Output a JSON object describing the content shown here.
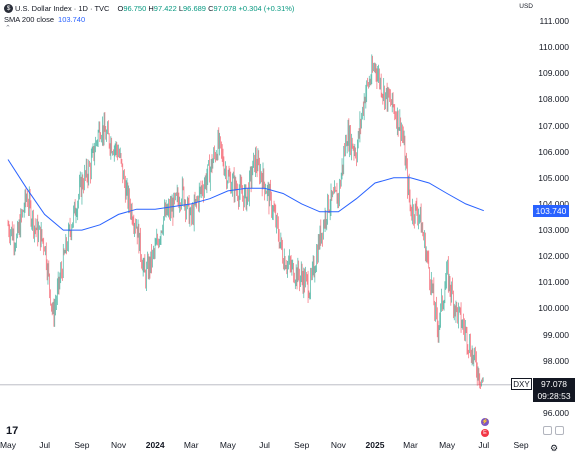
{
  "header": {
    "symbol_badge": "$",
    "title": "U.S. Dollar Index · 1D · TVC",
    "ohlc": {
      "o_label": "O",
      "o": "96.750",
      "h_label": "H",
      "h": "97.422",
      "l_label": "L",
      "l": "96.689",
      "c_label": "C",
      "c": "97.078",
      "change": "+0.304 (+0.31%)"
    },
    "indicator_name": "SMA 200 close",
    "indicator_value": "103.740",
    "currency": "USD"
  },
  "price_axis": [
    "111.000",
    "110.000",
    "109.000",
    "108.000",
    "107.000",
    "106.000",
    "105.000",
    "104.000",
    "103.000",
    "102.000",
    "101.000",
    "100.000",
    "99.000",
    "98.000",
    "97.000",
    "96.000"
  ],
  "time_axis": [
    {
      "label": "May",
      "bold": false
    },
    {
      "label": "Jul",
      "bold": false
    },
    {
      "label": "Sep",
      "bold": false
    },
    {
      "label": "Nov",
      "bold": false
    },
    {
      "label": "2024",
      "bold": true
    },
    {
      "label": "Mar",
      "bold": false
    },
    {
      "label": "May",
      "bold": false
    },
    {
      "label": "Jul",
      "bold": false
    },
    {
      "label": "Sep",
      "bold": false
    },
    {
      "label": "Nov",
      "bold": false
    },
    {
      "label": "2025",
      "bold": true
    },
    {
      "label": "Mar",
      "bold": false
    },
    {
      "label": "May",
      "bold": false
    },
    {
      "label": "Jul",
      "bold": false
    },
    {
      "label": "Sep",
      "bold": false
    }
  ],
  "sma_badge": "103.740",
  "last_price": {
    "symbol": "DXY",
    "price": "97.078",
    "countdown": "09:28:53"
  },
  "colors": {
    "up": "#089981",
    "down": "#f23645",
    "sma": "#2962ff",
    "line": "#b2b5be"
  },
  "icons": {
    "collapse": "chevron-up-icon",
    "logo": "tradingview-logo",
    "settings": "gear-icon",
    "event1": "dividend-event-icon",
    "event2": "earnings-event-icon"
  },
  "chart_data": {
    "type": "candlestick",
    "ylim": [
      96.0,
      111.0
    ],
    "x_range": [
      "2023-05",
      "2025-09"
    ],
    "close_path": [
      [
        "2023-05",
        103.2
      ],
      [
        "2023-05-15",
        102.6
      ],
      [
        "2023-06",
        104.3
      ],
      [
        "2023-06-15",
        103.1
      ],
      [
        "2023-07",
        102.5
      ],
      [
        "2023-07-15",
        99.7
      ],
      [
        "2023-08",
        101.8
      ],
      [
        "2023-08-15",
        103.3
      ],
      [
        "2023-09",
        104.8
      ],
      [
        "2023-09-15",
        105.4
      ],
      [
        "2023-10",
        107.0
      ],
      [
        "2023-10-15",
        106.5
      ],
      [
        "2023-11",
        106.0
      ],
      [
        "2023-11-15",
        104.3
      ],
      [
        "2023-12",
        103.2
      ],
      [
        "2023-12-15",
        101.2
      ],
      [
        "2024-01",
        102.2
      ],
      [
        "2024-01-15",
        103.5
      ],
      [
        "2024-02",
        103.9
      ],
      [
        "2024-02-15",
        104.5
      ],
      [
        "2024-03",
        103.4
      ],
      [
        "2024-03-15",
        104.4
      ],
      [
        "2024-04",
        105.3
      ],
      [
        "2024-04-15",
        106.3
      ],
      [
        "2024-05",
        105.0
      ],
      [
        "2024-05-15",
        104.6
      ],
      [
        "2024-06",
        104.2
      ],
      [
        "2024-06-15",
        105.7
      ],
      [
        "2024-07",
        104.8
      ],
      [
        "2024-07-15",
        103.8
      ],
      [
        "2024-08",
        102.0
      ],
      [
        "2024-08-15",
        101.5
      ],
      [
        "2024-09",
        101.2
      ],
      [
        "2024-09-15",
        100.8
      ],
      [
        "2024-10",
        102.7
      ],
      [
        "2024-10-15",
        104.0
      ],
      [
        "2024-11",
        104.3
      ],
      [
        "2024-11-15",
        106.7
      ],
      [
        "2024-12",
        106.0
      ],
      [
        "2024-12-15",
        108.2
      ],
      [
        "2025-01",
        109.3
      ],
      [
        "2025-01-15",
        108.3
      ],
      [
        "2025-02",
        107.7
      ],
      [
        "2025-02-15",
        106.8
      ],
      [
        "2025-03",
        103.8
      ],
      [
        "2025-03-15",
        103.7
      ],
      [
        "2025-04",
        101.5
      ],
      [
        "2025-04-15",
        99.2
      ],
      [
        "2025-05",
        101.3
      ],
      [
        "2025-05-15",
        100.0
      ],
      [
        "2025-06",
        99.1
      ],
      [
        "2025-06-15",
        98.0
      ],
      [
        "2025-07",
        97.1
      ]
    ],
    "sma200": [
      [
        "2023-05",
        105.7
      ],
      [
        "2023-06",
        104.6
      ],
      [
        "2023-07",
        103.6
      ],
      [
        "2023-08",
        103.0
      ],
      [
        "2023-09",
        103.0
      ],
      [
        "2023-10",
        103.2
      ],
      [
        "2023-11",
        103.6
      ],
      [
        "2023-12",
        103.8
      ],
      [
        "2024-01",
        103.8
      ],
      [
        "2024-02",
        103.9
      ],
      [
        "2024-03",
        104.0
      ],
      [
        "2024-04",
        104.2
      ],
      [
        "2024-05",
        104.5
      ],
      [
        "2024-06",
        104.6
      ],
      [
        "2024-07",
        104.6
      ],
      [
        "2024-08",
        104.4
      ],
      [
        "2024-09",
        104.0
      ],
      [
        "2024-10",
        103.7
      ],
      [
        "2024-11",
        103.7
      ],
      [
        "2024-12",
        104.2
      ],
      [
        "2025-01",
        104.8
      ],
      [
        "2025-02",
        105.0
      ],
      [
        "2025-03",
        105.0
      ],
      [
        "2025-04",
        104.8
      ],
      [
        "2025-05",
        104.4
      ],
      [
        "2025-06",
        104.0
      ],
      [
        "2025-07",
        103.74
      ]
    ],
    "last_price": 97.078,
    "sma_last": 103.74
  }
}
